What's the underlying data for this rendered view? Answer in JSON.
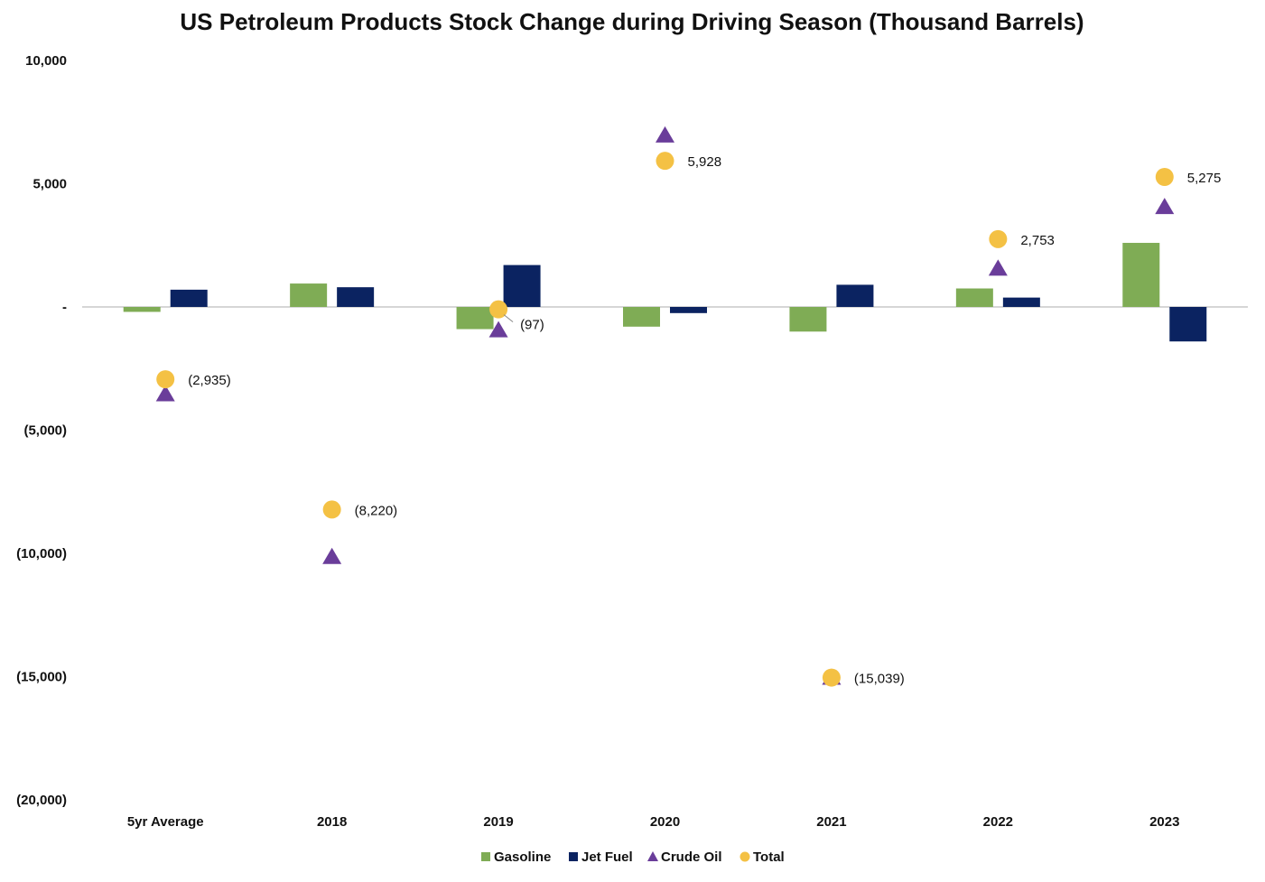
{
  "chart_data": {
    "type": "bar",
    "title": "US Petroleum Products Stock Change during Driving Season (Thousand Barrels)",
    "xlabel": "",
    "ylabel": "",
    "ylim": [
      -20000,
      10000
    ],
    "yticks": [
      10000,
      5000,
      0,
      -5000,
      -10000,
      -15000,
      -20000
    ],
    "ytick_labels": [
      "10,000",
      "5,000",
      "-",
      "(5,000)",
      "(10,000)",
      "(15,000)",
      "(20,000)"
    ],
    "categories": [
      "5yr Average",
      "2018",
      "2019",
      "2020",
      "2021",
      "2022",
      "2023"
    ],
    "series": [
      {
        "name": "Gasoline",
        "kind": "bar",
        "color": "#7fac55",
        "values": [
          -200,
          950,
          -900,
          -800,
          -1000,
          750,
          2600
        ]
      },
      {
        "name": "Jet Fuel",
        "kind": "bar",
        "color": "#0b2361",
        "values": [
          700,
          800,
          1700,
          -250,
          900,
          380,
          -1400
        ]
      },
      {
        "name": "Crude Oil",
        "kind": "triangle",
        "color": "#6a3d9a",
        "values": [
          -3500,
          -10100,
          -900,
          7000,
          -15000,
          1600,
          4100
        ]
      },
      {
        "name": "Total",
        "kind": "circle",
        "color": "#f4c144",
        "values": [
          -2935,
          -8220,
          -97,
          5928,
          -15039,
          2753,
          5275
        ]
      }
    ],
    "total_labels": [
      "(2,935)",
      "(8,220)",
      "(97)",
      "5,928",
      "(15,039)",
      "2,753",
      "5,275"
    ],
    "legend": [
      "Gasoline",
      "Jet Fuel",
      "Crude Oil",
      "Total"
    ],
    "legend_position": "bottom",
    "grid": false
  }
}
